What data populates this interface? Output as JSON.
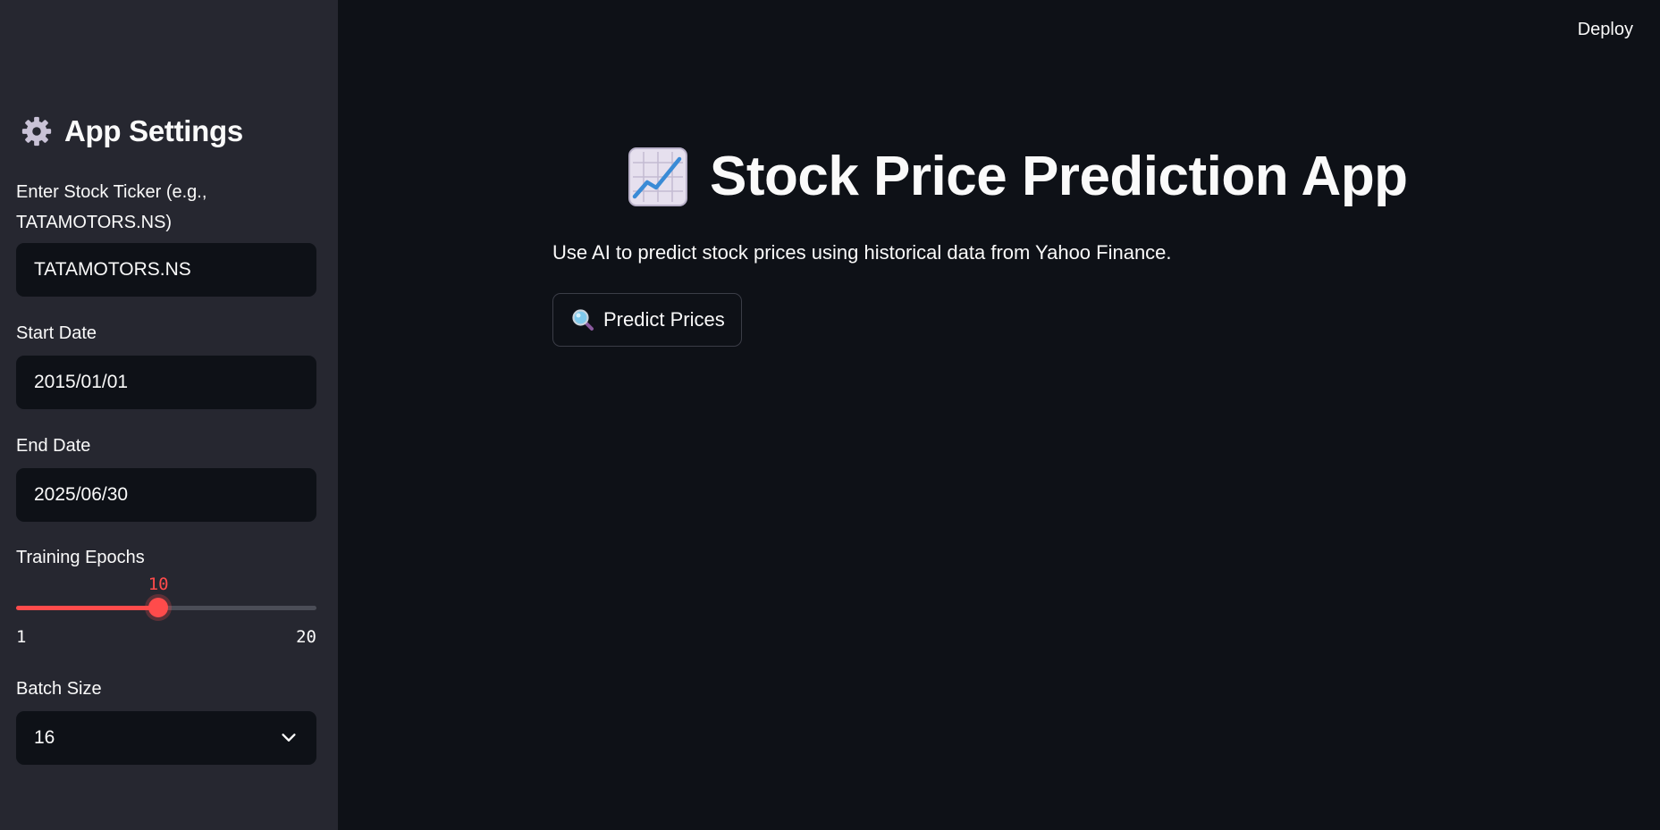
{
  "header": {
    "deploy_label": "Deploy"
  },
  "sidebar": {
    "title": "App Settings",
    "title_icon": "gear-icon",
    "ticker": {
      "label": "Enter Stock Ticker (e.g., TATAMOTORS.NS)",
      "value": "TATAMOTORS.NS"
    },
    "start_date": {
      "label": "Start Date",
      "value": "2015/01/01"
    },
    "end_date": {
      "label": "End Date",
      "value": "2025/06/30"
    },
    "epochs": {
      "label": "Training Epochs",
      "value": "10",
      "min": "1",
      "max": "20"
    },
    "batch_size": {
      "label": "Batch Size",
      "selected": "16",
      "icon": "chevron-down-icon"
    }
  },
  "main": {
    "title": "Stock Price Prediction App",
    "title_icon": "chart-increasing-icon",
    "subtitle": "Use AI to predict stock prices using historical data from Yahoo Finance.",
    "predict_button": {
      "label": "Predict Prices",
      "icon": "magnifying-glass-icon"
    }
  },
  "colors": {
    "background": "#0e1117",
    "sidebar": "#262730",
    "accent": "#ff4b4b",
    "text": "#fafafa"
  }
}
